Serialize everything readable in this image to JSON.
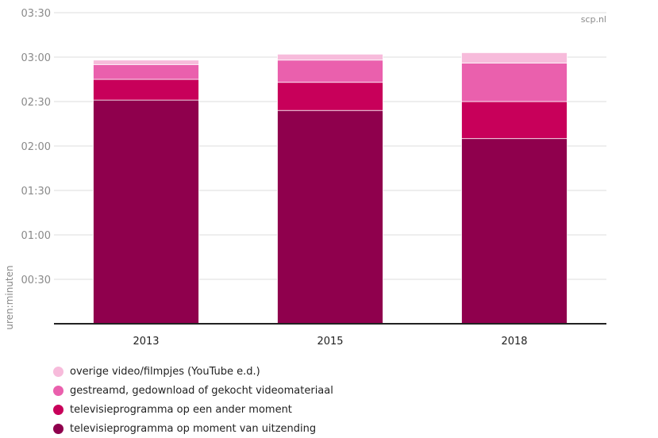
{
  "chart_data": {
    "type": "bar",
    "stacked": true,
    "categories": [
      "2013",
      "2015",
      "2018"
    ],
    "series": [
      {
        "name": "televisieprogramma op moment van uitzending",
        "color": "#8f004d",
        "values": [
          151,
          144,
          125
        ]
      },
      {
        "name": "televisieprogramma op een ander moment",
        "color": "#c8005a",
        "values": [
          14,
          19,
          25
        ]
      },
      {
        "name": "gestreamd, gedownload of gekocht videomateriaal",
        "color": "#ea60ad",
        "values": [
          10,
          15,
          26
        ]
      },
      {
        "name": "overige video/filmpjes (YouTube e.d.)",
        "color": "#f7bbdb",
        "values": [
          3,
          4,
          7
        ]
      }
    ],
    "yticks": [
      "00:30",
      "01:00",
      "01:30",
      "02:00",
      "02:30",
      "03:00",
      "03:30"
    ],
    "ylim": [
      0,
      210
    ],
    "ylabel": "uren:minuten",
    "source": "scp.nl",
    "grid": true,
    "legend_position": "bottom"
  }
}
